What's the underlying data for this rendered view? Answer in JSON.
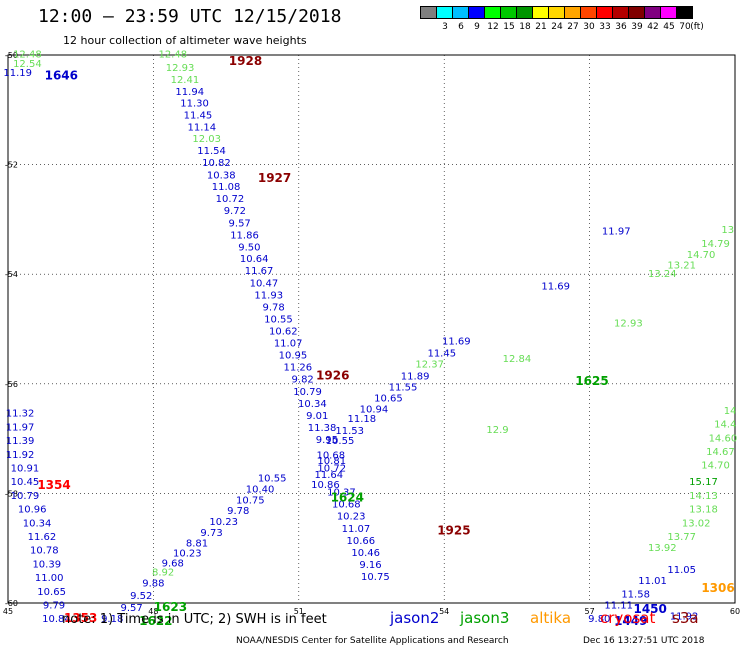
{
  "header": {
    "title": "12:00 – 23:59 UTC 12/15/2018",
    "subtitle": "12 hour collection of altimeter wave heights"
  },
  "legend_scale": {
    "unit": "(ft)",
    "labels": [
      "3",
      "6",
      "9",
      "12",
      "15",
      "18",
      "21",
      "24",
      "27",
      "30",
      "33",
      "36",
      "39",
      "42",
      "45",
      "70"
    ],
    "colors": [
      "#7f7f7f",
      "#00ffff",
      "#00bfff",
      "#0000ff",
      "#00ff00",
      "#00c800",
      "#009600",
      "#ffff00",
      "#ffd700",
      "#ffa500",
      "#ff4500",
      "#ff0000",
      "#b40000",
      "#800000",
      "#800080",
      "#ff00ff",
      "#000000"
    ]
  },
  "footer": {
    "note": "note: 1) Time is in UTC; 2) SWH is in feet",
    "satellites": [
      {
        "name": "jason2",
        "color": "#0000cc"
      },
      {
        "name": "jason3",
        "color": "#00a000"
      },
      {
        "name": "altika",
        "color": "#ff9900"
      },
      {
        "name": "cryosat",
        "color": "#ff0000"
      },
      {
        "name": "s3a",
        "color": "#8b0000"
      }
    ],
    "credit": "NOAA/NESDIS Center for Satellite Applications and Research",
    "timestamp": "Dec 16 13:27:51 UTC 2018"
  },
  "chart_data": {
    "type": "scatter",
    "title": "12 hour collection of altimeter wave heights",
    "xlim": [
      45,
      60
    ],
    "ylim": [
      -60,
      -50
    ],
    "x_ticks": [
      45,
      48,
      51,
      54,
      57,
      60
    ],
    "y_ticks": [
      -50,
      -52,
      -54,
      -56,
      -58,
      -60
    ],
    "x_tick_labels": [
      "45",
      "48",
      "51",
      "54",
      "57",
      "60"
    ],
    "y_tick_labels": [
      "-50",
      "-52",
      "-54",
      "-56",
      "-58",
      "-60"
    ],
    "grid": true,
    "series_colors": {
      "jason2": "#0000cc",
      "jason3": "#00a000",
      "altika": "#ff9900",
      "cryosat": "#ff0000",
      "s3a": "#8b0000",
      "light": "#66dd55"
    },
    "points": [
      {
        "lon": 45.2,
        "lat": -50.38,
        "v": "11.19",
        "s": "jason2"
      },
      {
        "lon": 45.4,
        "lat": -50.05,
        "v": "12.48",
        "s": "light"
      },
      {
        "lon": 45.4,
        "lat": -50.22,
        "v": "12.54",
        "s": "light"
      },
      {
        "lon": 48.4,
        "lat": -50.05,
        "v": "12.48",
        "s": "light"
      },
      {
        "lon": 48.55,
        "lat": -50.29,
        "v": "12.93",
        "s": "light"
      },
      {
        "lon": 48.65,
        "lat": -50.51,
        "v": "12.41",
        "s": "light"
      },
      {
        "lon": 48.75,
        "lat": -50.73,
        "v": "11.94",
        "s": "jason2"
      },
      {
        "lon": 48.85,
        "lat": -50.94,
        "v": "11.30",
        "s": "jason2"
      },
      {
        "lon": 48.92,
        "lat": -51.16,
        "v": "11.45",
        "s": "jason2"
      },
      {
        "lon": 49.0,
        "lat": -51.38,
        "v": "11.14",
        "s": "jason2"
      },
      {
        "lon": 49.1,
        "lat": -51.59,
        "v": "12.03",
        "s": "light"
      },
      {
        "lon": 49.2,
        "lat": -51.81,
        "v": "11.54",
        "s": "jason2"
      },
      {
        "lon": 49.3,
        "lat": -52.03,
        "v": "10.82",
        "s": "jason2"
      },
      {
        "lon": 49.4,
        "lat": -52.25,
        "v": "10.38",
        "s": "jason2"
      },
      {
        "lon": 49.5,
        "lat": -52.46,
        "v": "11.08",
        "s": "jason2"
      },
      {
        "lon": 49.58,
        "lat": -52.68,
        "v": "10.72",
        "s": "jason2"
      },
      {
        "lon": 49.68,
        "lat": -52.9,
        "v": "9.72",
        "s": "jason2"
      },
      {
        "lon": 49.78,
        "lat": -53.13,
        "v": "9.57",
        "s": "jason2"
      },
      {
        "lon": 49.88,
        "lat": -53.35,
        "v": "11.86",
        "s": "jason2"
      },
      {
        "lon": 49.98,
        "lat": -53.57,
        "v": "9.50",
        "s": "jason2"
      },
      {
        "lon": 50.08,
        "lat": -53.78,
        "v": "10.64",
        "s": "jason2"
      },
      {
        "lon": 50.18,
        "lat": -54.0,
        "v": "11.67",
        "s": "jason2"
      },
      {
        "lon": 50.28,
        "lat": -54.22,
        "v": "10.47",
        "s": "jason2"
      },
      {
        "lon": 50.38,
        "lat": -54.44,
        "v": "11.93",
        "s": "jason2"
      },
      {
        "lon": 50.48,
        "lat": -54.66,
        "v": "9.78",
        "s": "jason2"
      },
      {
        "lon": 50.58,
        "lat": -54.88,
        "v": "10.55",
        "s": "jason2"
      },
      {
        "lon": 50.68,
        "lat": -55.1,
        "v": "10.62",
        "s": "jason2"
      },
      {
        "lon": 50.78,
        "lat": -55.32,
        "v": "11.07",
        "s": "jason2"
      },
      {
        "lon": 50.88,
        "lat": -55.54,
        "v": "10.95",
        "s": "jason2"
      },
      {
        "lon": 50.98,
        "lat": -55.76,
        "v": "11.26",
        "s": "jason2"
      },
      {
        "lon": 51.08,
        "lat": -55.98,
        "v": "9.82",
        "s": "jason2"
      },
      {
        "lon": 51.18,
        "lat": -56.2,
        "v": "10.79",
        "s": "jason2"
      },
      {
        "lon": 51.28,
        "lat": -56.42,
        "v": "10.34",
        "s": "jason2"
      },
      {
        "lon": 51.38,
        "lat": -56.64,
        "v": "9.01",
        "s": "jason2"
      },
      {
        "lon": 51.48,
        "lat": -56.86,
        "v": "11.38",
        "s": "jason2"
      },
      {
        "lon": 51.58,
        "lat": -57.08,
        "v": "9.95",
        "s": "jason2"
      },
      {
        "lon": 51.66,
        "lat": -57.36,
        "v": "10.68",
        "s": "jason2"
      },
      {
        "lon": 51.68,
        "lat": -57.46,
        "v": "10.81",
        "s": "jason2"
      },
      {
        "lon": 51.68,
        "lat": -57.6,
        "v": "10.72",
        "s": "jason2"
      },
      {
        "lon": 51.62,
        "lat": -57.72,
        "v": "11.64",
        "s": "jason2"
      },
      {
        "lon": 51.55,
        "lat": -57.9,
        "v": "10.86",
        "s": "jason2"
      },
      {
        "lon": 51.88,
        "lat": -58.04,
        "v": "10.37",
        "s": "jason2"
      },
      {
        "lon": 51.98,
        "lat": -58.26,
        "v": "10.68",
        "s": "jason2"
      },
      {
        "lon": 52.08,
        "lat": -58.48,
        "v": "10.23",
        "s": "jason2"
      },
      {
        "lon": 52.18,
        "lat": -58.7,
        "v": "11.07",
        "s": "jason2"
      },
      {
        "lon": 52.28,
        "lat": -58.92,
        "v": "10.66",
        "s": "jason2"
      },
      {
        "lon": 52.38,
        "lat": -59.14,
        "v": "10.46",
        "s": "jason2"
      },
      {
        "lon": 52.48,
        "lat": -59.36,
        "v": "9.16",
        "s": "jason2"
      },
      {
        "lon": 52.58,
        "lat": -59.58,
        "v": "10.75",
        "s": "jason2"
      },
      {
        "lon": 45.25,
        "lat": -56.6,
        "v": "11.32",
        "s": "jason2"
      },
      {
        "lon": 45.25,
        "lat": -56.85,
        "v": "11.97",
        "s": "jason2"
      },
      {
        "lon": 45.25,
        "lat": -57.1,
        "v": "11.39",
        "s": "jason2"
      },
      {
        "lon": 45.25,
        "lat": -57.35,
        "v": "11.92",
        "s": "jason2"
      },
      {
        "lon": 45.35,
        "lat": -57.6,
        "v": "10.91",
        "s": "jason2"
      },
      {
        "lon": 45.35,
        "lat": -57.85,
        "v": "10.45",
        "s": "jason2"
      },
      {
        "lon": 45.35,
        "lat": -58.1,
        "v": "10.79",
        "s": "jason2"
      },
      {
        "lon": 45.5,
        "lat": -58.35,
        "v": "10.96",
        "s": "jason2"
      },
      {
        "lon": 45.6,
        "lat": -58.6,
        "v": "10.34",
        "s": "jason2"
      },
      {
        "lon": 45.7,
        "lat": -58.85,
        "v": "11.62",
        "s": "jason2"
      },
      {
        "lon": 45.75,
        "lat": -59.1,
        "v": "10.78",
        "s": "jason2"
      },
      {
        "lon": 45.8,
        "lat": -59.35,
        "v": "10.39",
        "s": "jason2"
      },
      {
        "lon": 45.85,
        "lat": -59.6,
        "v": "11.00",
        "s": "jason2"
      },
      {
        "lon": 45.9,
        "lat": -59.85,
        "v": "10.65",
        "s": "jason2"
      },
      {
        "lon": 45.95,
        "lat": -60.1,
        "v": "9.79",
        "s": "jason2"
      },
      {
        "lon": 46.0,
        "lat": -60.35,
        "v": "10.84",
        "s": "jason2"
      },
      {
        "lon": 47.15,
        "lat": -60.35,
        "v": "9.18",
        "s": "jason2"
      },
      {
        "lon": 47.55,
        "lat": -60.15,
        "v": "9.57",
        "s": "jason2"
      },
      {
        "lon": 47.75,
        "lat": -59.93,
        "v": "9.52",
        "s": "jason2"
      },
      {
        "lon": 48.0,
        "lat": -59.7,
        "v": "9.88",
        "s": "jason2"
      },
      {
        "lon": 48.2,
        "lat": -59.5,
        "v": "8.92",
        "s": "light"
      },
      {
        "lon": 48.4,
        "lat": -59.33,
        "v": "9.68",
        "s": "jason2"
      },
      {
        "lon": 48.7,
        "lat": -59.15,
        "v": "10.23",
        "s": "jason2"
      },
      {
        "lon": 48.9,
        "lat": -58.97,
        "v": "8.81",
        "s": "jason2"
      },
      {
        "lon": 49.2,
        "lat": -58.78,
        "v": "9.73",
        "s": "jason2"
      },
      {
        "lon": 49.45,
        "lat": -58.58,
        "v": "10.23",
        "s": "jason2"
      },
      {
        "lon": 49.75,
        "lat": -58.38,
        "v": "9.78",
        "s": "jason2"
      },
      {
        "lon": 50.0,
        "lat": -58.18,
        "v": "10.75",
        "s": "jason2"
      },
      {
        "lon": 50.2,
        "lat": -57.98,
        "v": "10.40",
        "s": "jason2"
      },
      {
        "lon": 50.45,
        "lat": -57.78,
        "v": "10.55",
        "s": "jason2"
      },
      {
        "lon": 51.85,
        "lat": -57.1,
        "v": "10.55",
        "s": "jason2"
      },
      {
        "lon": 52.05,
        "lat": -56.92,
        "v": "11.53",
        "s": "jason2"
      },
      {
        "lon": 52.3,
        "lat": -56.7,
        "v": "11.18",
        "s": "jason2"
      },
      {
        "lon": 52.55,
        "lat": -56.52,
        "v": "10.94",
        "s": "jason2"
      },
      {
        "lon": 52.85,
        "lat": -56.32,
        "v": "10.65",
        "s": "jason2"
      },
      {
        "lon": 53.15,
        "lat": -56.12,
        "v": "11.55",
        "s": "jason2"
      },
      {
        "lon": 53.4,
        "lat": -55.92,
        "v": "11.89",
        "s": "jason2"
      },
      {
        "lon": 53.7,
        "lat": -55.7,
        "v": "12.37",
        "s": "light"
      },
      {
        "lon": 53.95,
        "lat": -55.5,
        "v": "11.45",
        "s": "jason2"
      },
      {
        "lon": 54.25,
        "lat": -55.28,
        "v": "11.69",
        "s": "jason2"
      },
      {
        "lon": 56.3,
        "lat": -54.28,
        "v": "11.69",
        "s": "jason2"
      },
      {
        "lon": 57.55,
        "lat": -53.28,
        "v": "11.97",
        "s": "jason2"
      },
      {
        "lon": 57.2,
        "lat": -60.35,
        "v": "9.80",
        "s": "jason2"
      },
      {
        "lon": 57.6,
        "lat": -60.1,
        "v": "11.11",
        "s": "jason2"
      },
      {
        "lon": 57.95,
        "lat": -59.9,
        "v": "11.58",
        "s": "jason2"
      },
      {
        "lon": 58.3,
        "lat": -59.65,
        "v": "11.01",
        "s": "jason2"
      },
      {
        "lon": 58.9,
        "lat": -59.45,
        "v": "11.05",
        "s": "jason2"
      },
      {
        "lon": 58.95,
        "lat": -60.3,
        "v": "11.92",
        "s": "jason2"
      },
      {
        "lon": 58.5,
        "lat": -59.05,
        "v": "13.92",
        "s": "light"
      },
      {
        "lon": 58.9,
        "lat": -58.85,
        "v": "13.77",
        "s": "light"
      },
      {
        "lon": 59.2,
        "lat": -58.6,
        "v": "13.02",
        "s": "light"
      },
      {
        "lon": 59.35,
        "lat": -58.35,
        "v": "13.18",
        "s": "light"
      },
      {
        "lon": 59.35,
        "lat": -58.1,
        "v": "14.13",
        "s": "light"
      },
      {
        "lon": 59.35,
        "lat": -57.85,
        "v": "15.17",
        "s": "jason3"
      },
      {
        "lon": 59.6,
        "lat": -57.55,
        "v": "14.70",
        "s": "light"
      },
      {
        "lon": 59.7,
        "lat": -57.3,
        "v": "14.67",
        "s": "light"
      },
      {
        "lon": 59.75,
        "lat": -57.05,
        "v": "14.60",
        "s": "light"
      },
      {
        "lon": 59.8,
        "lat": -56.8,
        "v": "14.4",
        "s": "light"
      },
      {
        "lon": 59.9,
        "lat": -56.55,
        "v": "14",
        "s": "light"
      },
      {
        "lon": 55.1,
        "lat": -56.9,
        "v": "12.9",
        "s": "light"
      },
      {
        "lon": 55.5,
        "lat": -55.6,
        "v": "12.84",
        "s": "light"
      },
      {
        "lon": 57.8,
        "lat": -54.95,
        "v": "12.93",
        "s": "light"
      },
      {
        "lon": 58.5,
        "lat": -54.05,
        "v": "13.24",
        "s": "light"
      },
      {
        "lon": 58.9,
        "lat": -53.9,
        "v": "13.21",
        "s": "light"
      },
      {
        "lon": 59.3,
        "lat": -53.7,
        "v": "14.70",
        "s": "light"
      },
      {
        "lon": 59.6,
        "lat": -53.5,
        "v": "14.79",
        "s": "light"
      },
      {
        "lon": 59.85,
        "lat": -53.25,
        "v": "13",
        "s": "light"
      }
    ],
    "pass_labels": [
      {
        "lon": 49.9,
        "lat": -50.18,
        "t": "1928",
        "s": "s3a"
      },
      {
        "lon": 46.1,
        "lat": -50.45,
        "t": "1646",
        "s": "jason2"
      },
      {
        "lon": 50.5,
        "lat": -52.32,
        "t": "1927",
        "s": "s3a"
      },
      {
        "lon": 51.7,
        "lat": -55.92,
        "t": "1926",
        "s": "s3a"
      },
      {
        "lon": 57.05,
        "lat": -56.02,
        "t": "1625",
        "s": "jason3"
      },
      {
        "lon": 45.95,
        "lat": -57.92,
        "t": "1354",
        "s": "cryosat"
      },
      {
        "lon": 52.0,
        "lat": -58.15,
        "t": "1624",
        "s": "jason3"
      },
      {
        "lon": 54.2,
        "lat": -58.75,
        "t": "1925",
        "s": "s3a"
      },
      {
        "lon": 59.65,
        "lat": -59.8,
        "t": "1306",
        "s": "altika"
      },
      {
        "lon": 58.25,
        "lat": -60.18,
        "t": "1450",
        "s": "jason2"
      },
      {
        "lon": 57.85,
        "lat": -60.4,
        "t": "1449",
        "s": "jason2"
      },
      {
        "lon": 48.35,
        "lat": -60.15,
        "t": "1623",
        "s": "jason3"
      },
      {
        "lon": 48.05,
        "lat": -60.4,
        "t": "1622",
        "s": "jason3"
      },
      {
        "lon": 46.5,
        "lat": -60.35,
        "t": "1353",
        "s": "cryosat"
      }
    ]
  }
}
